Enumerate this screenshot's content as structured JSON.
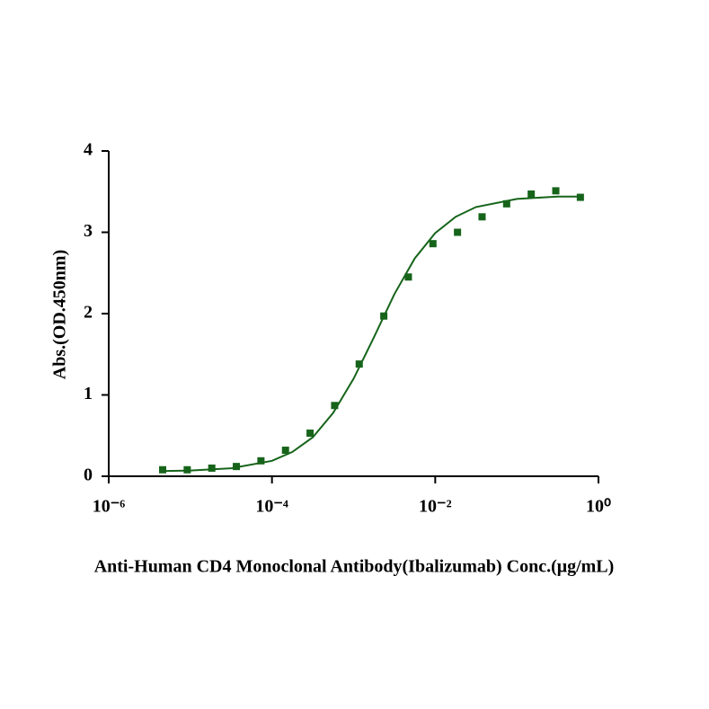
{
  "chart_data": {
    "type": "scatter",
    "xlabel": "Anti-Human CD4 Monoclonal Antibody(Ibalizumab) Conc.(μg/mL)",
    "ylabel": "Abs.(OD.450nm)",
    "xscale": "log",
    "xlim": [
      1e-06,
      1
    ],
    "xticks": [
      {
        "value": 1e-06,
        "label": "10⁻⁶"
      },
      {
        "value": 0.0001,
        "label": "10⁻⁴"
      },
      {
        "value": 0.01,
        "label": "10⁻²"
      },
      {
        "value": 1,
        "label": "10⁰"
      }
    ],
    "ylim": [
      0,
      4
    ],
    "yticks": [
      0,
      1,
      2,
      3,
      4
    ],
    "color": "#16641a",
    "x": [
      4.578e-06,
      9.155e-06,
      1.831e-05,
      3.662e-05,
      7.324e-05,
      0.0001465,
      0.000293,
      0.000586,
      0.001172,
      0.002344,
      0.004688,
      0.009375,
      0.01875,
      0.0375,
      0.075,
      0.15,
      0.3,
      0.6
    ],
    "values": [
      0.08,
      0.08,
      0.1,
      0.12,
      0.19,
      0.32,
      0.53,
      0.87,
      1.38,
      1.97,
      2.45,
      2.86,
      3.0,
      3.19,
      3.35,
      3.47,
      3.51,
      3.43
    ],
    "fit": {
      "x": [
        5.012e-06,
        1e-05,
        3.162e-05,
        0.0001,
        0.0001778,
        0.0003162,
        0.0005623,
        0.001,
        0.001778,
        0.003162,
        0.005623,
        0.01,
        0.01778,
        0.03162,
        0.1,
        0.3162,
        0.631
      ],
      "values": [
        0.065,
        0.071,
        0.098,
        0.19,
        0.3,
        0.48,
        0.78,
        1.2,
        1.71,
        2.24,
        2.68,
        2.99,
        3.19,
        3.31,
        3.41,
        3.44,
        3.44
      ]
    }
  }
}
